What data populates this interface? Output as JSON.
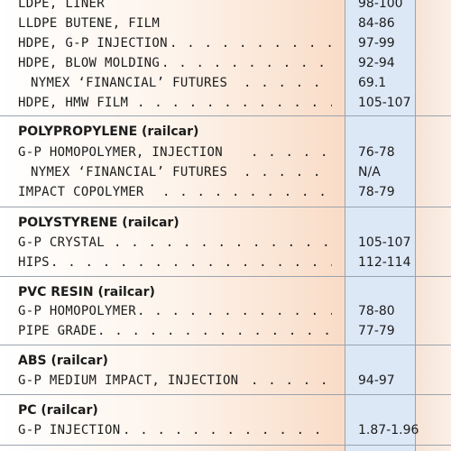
{
  "groups": [
    {
      "header": "",
      "rows": [
        {
          "label": "LDPE, LINER",
          "value": "98-100"
        },
        {
          "label": "LLDPE BUTENE, FILM",
          "value": "84-86"
        },
        {
          "label": "HDPE, G-P INJECTION",
          "value": "97-99"
        },
        {
          "label": "HDPE, BLOW MOLDING",
          "value": "92-94"
        },
        {
          "label": "NYMEX ‘FINANCIAL’ FUTURES",
          "value": "69.1"
        },
        {
          "label": "HDPE, HMW FILM",
          "value": "105-107"
        }
      ]
    },
    {
      "header": "POLYPROPYLENE (railcar)",
      "rows": [
        {
          "label": "G-P HOMOPOLYMER, INJECTION",
          "value": "76-78"
        },
        {
          "label": "NYMEX ‘FINANCIAL’ FUTURES",
          "value": "N/A"
        },
        {
          "label": "IMPACT COPOLYMER",
          "value": "78-79"
        }
      ]
    },
    {
      "header": "POLYSTYRENE (railcar)",
      "rows": [
        {
          "label": "G-P CRYSTAL",
          "value": "105-107"
        },
        {
          "label": "HIPS",
          "value": "112-114"
        }
      ]
    },
    {
      "header": "PVC RESIN (railcar)",
      "rows": [
        {
          "label": "G-P HOMOPOLYMER",
          "value": "78-80"
        },
        {
          "label": "PIPE GRADE",
          "value": "77-79"
        }
      ]
    },
    {
      "header": "ABS (railcar)",
      "rows": [
        {
          "label": "G-P MEDIUM IMPACT, INJECTION",
          "value": "94-97"
        }
      ]
    },
    {
      "header": "PC (railcar)",
      "rows": [
        {
          "label": "G-P INJECTION",
          "value": "1.87-1.96"
        }
      ]
    }
  ]
}
